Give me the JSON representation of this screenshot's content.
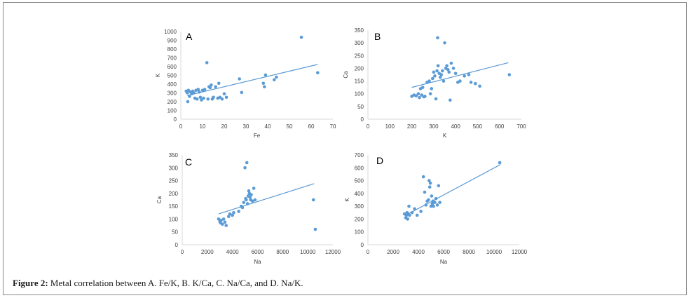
{
  "colors": {
    "series": "#5b9bd5",
    "axis": "#d9d9d9",
    "text": "#404040"
  },
  "caption": {
    "label": "Figure 2:",
    "text": " Metal correlation between A. Fe/K, B. K/Ca, C. Na/Ca, and D. Na/K."
  },
  "chart_data": [
    {
      "id": "A",
      "panel_label": "A",
      "type": "scatter",
      "xlabel": "Fe",
      "ylabel": "K",
      "xlim": [
        0,
        70
      ],
      "ylim": [
        0,
        1000
      ],
      "xticks": [
        0,
        10,
        20,
        30,
        40,
        50,
        60,
        70
      ],
      "yticks": [
        0,
        100,
        200,
        300,
        400,
        500,
        600,
        700,
        800,
        900,
        1000
      ],
      "trendline": [
        [
          3,
          270
        ],
        [
          63,
          625
        ]
      ],
      "points": [
        [
          2.5,
          320
        ],
        [
          3,
          300
        ],
        [
          3.2,
          200
        ],
        [
          3.5,
          330
        ],
        [
          4,
          260
        ],
        [
          4.5,
          310
        ],
        [
          5,
          290
        ],
        [
          5.5,
          320
        ],
        [
          6,
          300
        ],
        [
          6.5,
          240
        ],
        [
          7,
          330
        ],
        [
          7.5,
          230
        ],
        [
          8,
          340
        ],
        [
          8.5,
          310
        ],
        [
          9,
          250
        ],
        [
          9.5,
          220
        ],
        [
          10,
          330
        ],
        [
          10.5,
          240
        ],
        [
          11,
          340
        ],
        [
          12,
          645
        ],
        [
          12.5,
          230
        ],
        [
          13,
          370
        ],
        [
          13.5,
          360
        ],
        [
          14,
          390
        ],
        [
          14.5,
          230
        ],
        [
          15,
          250
        ],
        [
          16,
          370
        ],
        [
          17,
          240
        ],
        [
          17.5,
          410
        ],
        [
          18,
          250
        ],
        [
          19,
          230
        ],
        [
          20,
          290
        ],
        [
          21,
          250
        ],
        [
          27,
          460
        ],
        [
          28,
          305
        ],
        [
          38,
          410
        ],
        [
          38.5,
          370
        ],
        [
          39,
          505
        ],
        [
          43,
          450
        ],
        [
          44,
          480
        ],
        [
          55.5,
          935
        ],
        [
          63,
          530
        ]
      ]
    },
    {
      "id": "B",
      "panel_label": "B",
      "type": "scatter",
      "xlabel": "K",
      "ylabel": "Ca",
      "xlim": [
        0,
        700
      ],
      "ylim": [
        0,
        350
      ],
      "xticks": [
        0,
        100,
        200,
        300,
        400,
        500,
        600,
        700
      ],
      "yticks": [
        0,
        50,
        100,
        150,
        200,
        250,
        300,
        350
      ],
      "trendline": [
        [
          200,
          125
        ],
        [
          640,
          222
        ]
      ],
      "points": [
        [
          200,
          90
        ],
        [
          210,
          95
        ],
        [
          220,
          92
        ],
        [
          230,
          100
        ],
        [
          235,
          85
        ],
        [
          240,
          120
        ],
        [
          245,
          95
        ],
        [
          250,
          125
        ],
        [
          255,
          88
        ],
        [
          260,
          90
        ],
        [
          270,
          145
        ],
        [
          280,
          150
        ],
        [
          285,
          100
        ],
        [
          290,
          120
        ],
        [
          295,
          160
        ],
        [
          300,
          185
        ],
        [
          305,
          170
        ],
        [
          310,
          80
        ],
        [
          315,
          190
        ],
        [
          318,
          320
        ],
        [
          320,
          210
        ],
        [
          325,
          180
        ],
        [
          330,
          165
        ],
        [
          335,
          175
        ],
        [
          340,
          190
        ],
        [
          345,
          150
        ],
        [
          350,
          300
        ],
        [
          355,
          200
        ],
        [
          360,
          210
        ],
        [
          365,
          195
        ],
        [
          370,
          185
        ],
        [
          375,
          75
        ],
        [
          380,
          220
        ],
        [
          390,
          200
        ],
        [
          400,
          180
        ],
        [
          410,
          145
        ],
        [
          420,
          150
        ],
        [
          440,
          170
        ],
        [
          460,
          175
        ],
        [
          470,
          145
        ],
        [
          490,
          140
        ],
        [
          510,
          130
        ],
        [
          645,
          175
        ]
      ]
    },
    {
      "id": "C",
      "panel_label": "C",
      "type": "scatter",
      "xlabel": "Na",
      "ylabel": "Ca",
      "xlim": [
        0,
        12000
      ],
      "ylim": [
        0,
        350
      ],
      "xticks": [
        0,
        2000,
        4000,
        6000,
        8000,
        10000,
        12000
      ],
      "yticks": [
        0,
        50,
        100,
        150,
        200,
        250,
        300,
        350
      ],
      "trendline": [
        [
          2900,
          120
        ],
        [
          10500,
          238
        ]
      ],
      "points": [
        [
          2900,
          100
        ],
        [
          3000,
          90
        ],
        [
          3050,
          85
        ],
        [
          3100,
          95
        ],
        [
          3200,
          80
        ],
        [
          3300,
          100
        ],
        [
          3400,
          88
        ],
        [
          3500,
          75
        ],
        [
          3700,
          110
        ],
        [
          3800,
          120
        ],
        [
          4000,
          115
        ],
        [
          4100,
          125
        ],
        [
          4500,
          130
        ],
        [
          4700,
          150
        ],
        [
          4800,
          145
        ],
        [
          4900,
          165
        ],
        [
          5000,
          300
        ],
        [
          5050,
          180
        ],
        [
          5100,
          175
        ],
        [
          5150,
          320
        ],
        [
          5200,
          160
        ],
        [
          5250,
          190
        ],
        [
          5300,
          210
        ],
        [
          5350,
          200
        ],
        [
          5400,
          185
        ],
        [
          5450,
          175
        ],
        [
          5500,
          195
        ],
        [
          5600,
          170
        ],
        [
          5700,
          220
        ],
        [
          5800,
          175
        ],
        [
          10450,
          175
        ],
        [
          10600,
          60
        ]
      ]
    },
    {
      "id": "D",
      "panel_label": "D",
      "type": "scatter",
      "xlabel": "Na",
      "ylabel": "K",
      "xlim": [
        0,
        12000
      ],
      "ylim": [
        0,
        700
      ],
      "xticks": [
        0,
        2000,
        4000,
        6000,
        8000,
        10000,
        12000
      ],
      "yticks": [
        0,
        100,
        200,
        300,
        400,
        500,
        600,
        700
      ],
      "trendline": [
        [
          3000,
          230
        ],
        [
          10500,
          625
        ]
      ],
      "points": [
        [
          2900,
          240
        ],
        [
          3000,
          210
        ],
        [
          3050,
          230
        ],
        [
          3100,
          250
        ],
        [
          3150,
          200
        ],
        [
          3200,
          240
        ],
        [
          3250,
          300
        ],
        [
          3300,
          230
        ],
        [
          3500,
          250
        ],
        [
          3700,
          280
        ],
        [
          3900,
          230
        ],
        [
          4200,
          260
        ],
        [
          4400,
          530
        ],
        [
          4500,
          410
        ],
        [
          4600,
          310
        ],
        [
          4700,
          340
        ],
        [
          4800,
          350
        ],
        [
          4850,
          500
        ],
        [
          4900,
          450
        ],
        [
          4950,
          480
        ],
        [
          5000,
          300
        ],
        [
          5050,
          380
        ],
        [
          5100,
          320
        ],
        [
          5150,
          340
        ],
        [
          5200,
          300
        ],
        [
          5300,
          330
        ],
        [
          5400,
          360
        ],
        [
          5500,
          310
        ],
        [
          5600,
          460
        ],
        [
          5700,
          330
        ],
        [
          10450,
          640
        ]
      ]
    }
  ]
}
